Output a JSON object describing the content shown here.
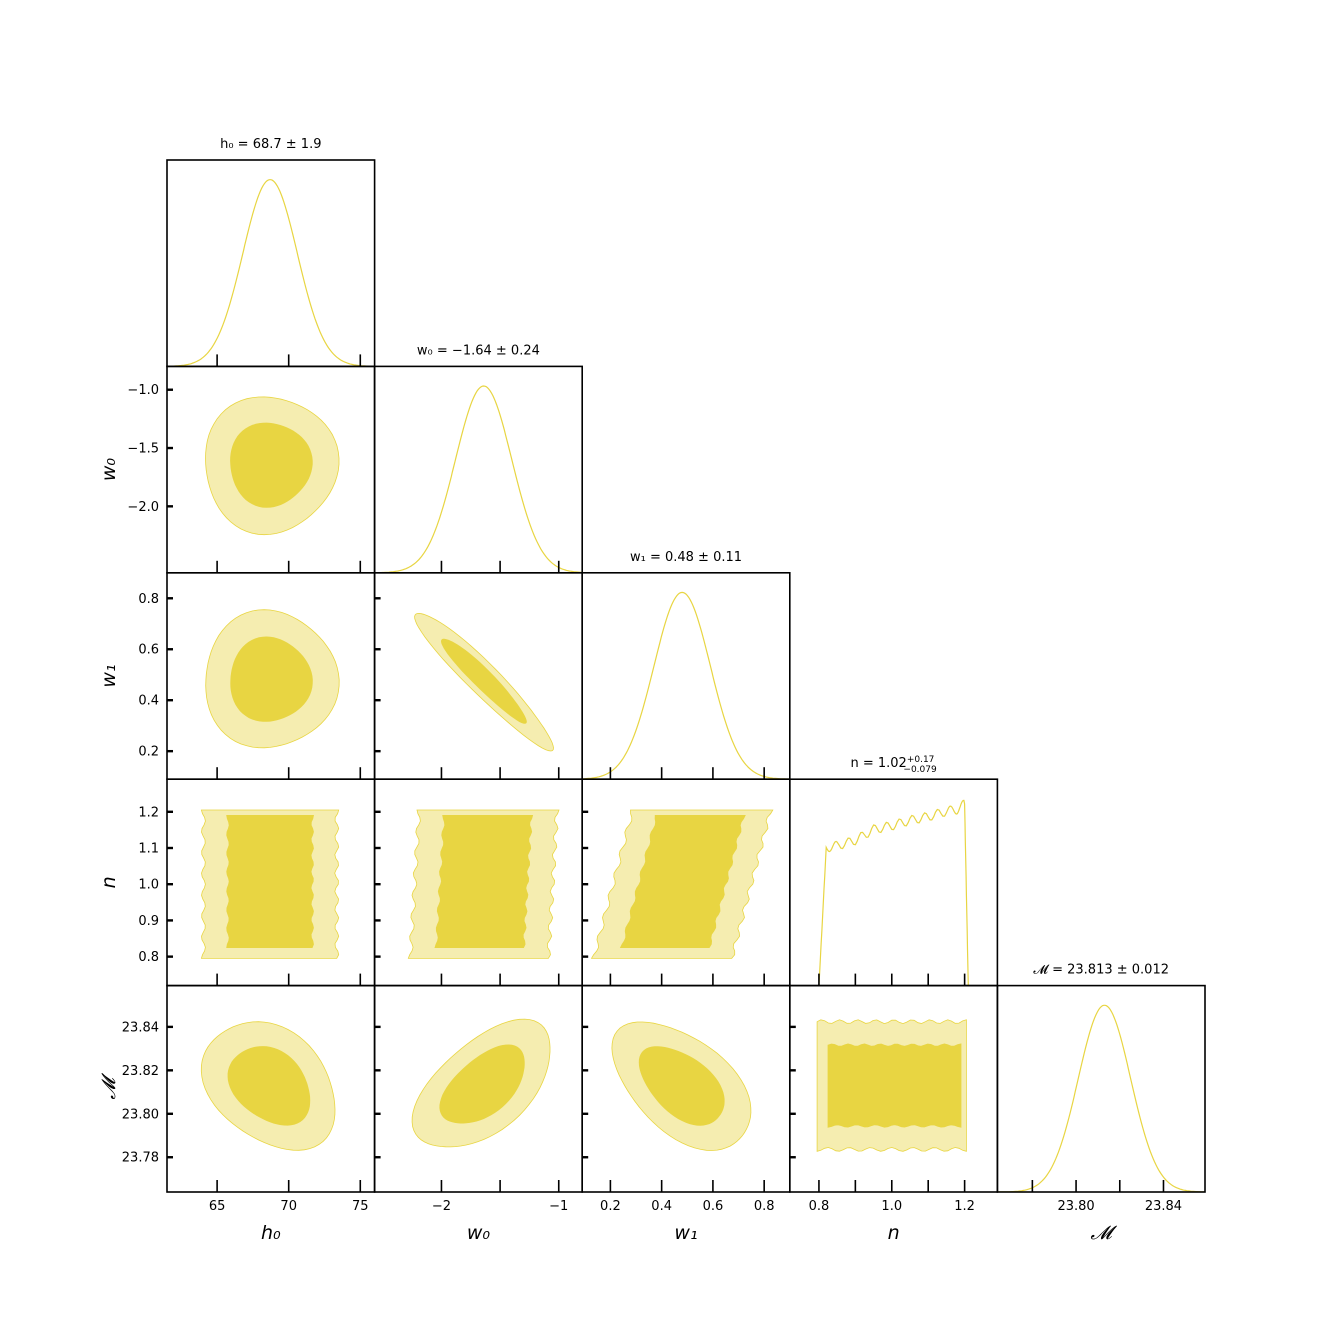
{
  "chart_data": {
    "type": "corner",
    "parameters": [
      {
        "key": "h0",
        "label": "h₀",
        "title": "h₀ = 68.7 ± 1.9",
        "range": [
          61.5,
          76.0
        ],
        "ticks": [
          65,
          70,
          75
        ],
        "tick_labels": [
          "65",
          "70",
          "75"
        ],
        "mean": 68.7,
        "sigma": 1.9
      },
      {
        "key": "w0",
        "label": "w₀",
        "title": "w₀ = −1.64 ± 0.24",
        "range": [
          -2.57,
          -0.8
        ],
        "ticks": [
          -2.0,
          -1.5,
          -1.0
        ],
        "tick_labels": [
          "−2",
          "",
          "−1"
        ],
        "y_tick_labels": [
          "−2.0",
          "−1.5",
          "−1.0"
        ],
        "mean": -1.64,
        "sigma": 0.24
      },
      {
        "key": "w1",
        "label": "w₁",
        "title": "w₁ = 0.48 ± 0.11",
        "range": [
          0.09,
          0.9
        ],
        "ticks": [
          0.2,
          0.4,
          0.6,
          0.8
        ],
        "tick_labels": [
          "0.2",
          "0.4",
          "0.6",
          "0.8"
        ],
        "mean": 0.48,
        "sigma": 0.11
      },
      {
        "key": "n",
        "label": "n",
        "title": "n = 1.02",
        "title_sup": "+0.17",
        "title_sub": "−0.079",
        "range": [
          0.72,
          1.29
        ],
        "ticks": [
          0.8,
          0.9,
          1.0,
          1.1,
          1.2
        ],
        "tick_labels": [
          "0.8",
          "",
          "1.0",
          "",
          "1.2"
        ],
        "y_tick_labels": [
          "0.8",
          "0.9",
          "1.0",
          "1.1",
          "1.2"
        ],
        "mean": 1.02,
        "sigma": 0.12
      },
      {
        "key": "M",
        "label": "𝓜",
        "title": "𝓜 = 23.813 ± 0.012",
        "range": [
          23.764,
          23.859
        ],
        "ticks": [
          23.78,
          23.8,
          23.82,
          23.84
        ],
        "tick_labels": [
          "",
          "23.80",
          "",
          "23.84"
        ],
        "y_tick_labels": [
          "23.78",
          "23.80",
          "23.82",
          "23.84"
        ],
        "mean": 23.813,
        "sigma": 0.012
      }
    ],
    "correlations": [
      {
        "i": 1,
        "j": 0,
        "rho": 0.0
      },
      {
        "i": 2,
        "j": 0,
        "rho": 0.0
      },
      {
        "i": 2,
        "j": 1,
        "rho": -0.95
      },
      {
        "i": 3,
        "j": 0,
        "rho": 0.0
      },
      {
        "i": 3,
        "j": 1,
        "rho": 0.1
      },
      {
        "i": 3,
        "j": 2,
        "rho": 0.45
      },
      {
        "i": 4,
        "j": 0,
        "rho": -0.3
      },
      {
        "i": 4,
        "j": 1,
        "rho": 0.55
      },
      {
        "i": 4,
        "j": 2,
        "rho": -0.5
      },
      {
        "i": 4,
        "j": 3,
        "rho": 0.0
      }
    ],
    "n_posterior_shape": {
      "x": [
        0.8,
        0.82,
        0.85,
        0.9,
        0.95,
        1.0,
        1.05,
        1.1,
        1.15,
        1.18,
        1.2,
        1.21
      ],
      "y": [
        0.0,
        0.76,
        0.77,
        0.8,
        0.86,
        0.88,
        0.91,
        0.93,
        0.96,
        0.97,
        1.0,
        0.0
      ]
    },
    "contour_levels": [
      "1-sigma",
      "2-sigma"
    ],
    "colors": {
      "inner_fill": "#e8d542",
      "outer_fill": "#f5edb0",
      "line": "#e8d542",
      "frame": "#000000"
    }
  }
}
